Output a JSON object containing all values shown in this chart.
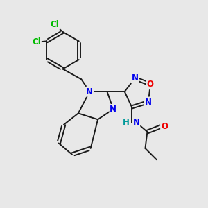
{
  "background_color": "#e8e8e8",
  "bond_color": "#1a1a1a",
  "atom_colors": {
    "N": "#0000ee",
    "O": "#ee0000",
    "Cl": "#00bb00",
    "H": "#009999",
    "C": "#1a1a1a"
  },
  "font_size_atom": 8.5,
  "figsize": [
    3.0,
    3.0
  ],
  "dpi": 100
}
